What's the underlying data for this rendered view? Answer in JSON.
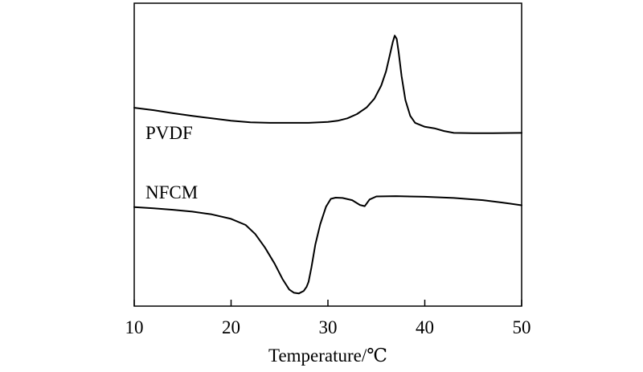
{
  "chart_data": {
    "type": "line",
    "xlabel": "Temperature/℃",
    "ylabel": "",
    "xlim": [
      10,
      50
    ],
    "xticks": [
      10,
      20,
      30,
      40,
      50
    ],
    "yticks_visible": false,
    "grid": false,
    "series": [
      {
        "name": "PVDF",
        "color": "#000000",
        "points": [
          [
            10.0,
            0.655
          ],
          [
            12.0,
            0.647
          ],
          [
            14.0,
            0.637
          ],
          [
            16.0,
            0.628
          ],
          [
            18.0,
            0.62
          ],
          [
            20.0,
            0.612
          ],
          [
            22.0,
            0.607
          ],
          [
            24.0,
            0.605
          ],
          [
            26.0,
            0.605
          ],
          [
            28.0,
            0.605
          ],
          [
            30.0,
            0.608
          ],
          [
            31.0,
            0.612
          ],
          [
            32.0,
            0.62
          ],
          [
            33.0,
            0.634
          ],
          [
            34.0,
            0.656
          ],
          [
            34.8,
            0.685
          ],
          [
            35.5,
            0.728
          ],
          [
            36.0,
            0.775
          ],
          [
            36.4,
            0.83
          ],
          [
            36.7,
            0.872
          ],
          [
            36.9,
            0.893
          ],
          [
            37.1,
            0.882
          ],
          [
            37.3,
            0.838
          ],
          [
            37.6,
            0.76
          ],
          [
            38.0,
            0.68
          ],
          [
            38.5,
            0.628
          ],
          [
            39.0,
            0.605
          ],
          [
            40.0,
            0.592
          ],
          [
            41.0,
            0.587
          ],
          [
            42.0,
            0.578
          ],
          [
            43.0,
            0.572
          ],
          [
            45.0,
            0.571
          ],
          [
            47.0,
            0.571
          ],
          [
            50.0,
            0.572
          ]
        ]
      },
      {
        "name": "NFCM",
        "color": "#000000",
        "points": [
          [
            10.0,
            0.327
          ],
          [
            12.0,
            0.323
          ],
          [
            14.0,
            0.318
          ],
          [
            16.0,
            0.312
          ],
          [
            18.0,
            0.303
          ],
          [
            20.0,
            0.288
          ],
          [
            21.5,
            0.268
          ],
          [
            22.5,
            0.238
          ],
          [
            23.5,
            0.193
          ],
          [
            24.5,
            0.14
          ],
          [
            25.3,
            0.09
          ],
          [
            26.0,
            0.055
          ],
          [
            26.5,
            0.044
          ],
          [
            27.0,
            0.042
          ],
          [
            27.5,
            0.05
          ],
          [
            27.8,
            0.064
          ],
          [
            28.0,
            0.08
          ],
          [
            28.3,
            0.128
          ],
          [
            28.7,
            0.203
          ],
          [
            29.2,
            0.27
          ],
          [
            29.8,
            0.328
          ],
          [
            30.3,
            0.354
          ],
          [
            30.8,
            0.358
          ],
          [
            31.5,
            0.357
          ],
          [
            32.5,
            0.35
          ],
          [
            33.3,
            0.334
          ],
          [
            33.8,
            0.33
          ],
          [
            34.3,
            0.352
          ],
          [
            35.0,
            0.362
          ],
          [
            37.0,
            0.363
          ],
          [
            40.0,
            0.361
          ],
          [
            43.0,
            0.357
          ],
          [
            46.0,
            0.35
          ],
          [
            48.0,
            0.342
          ],
          [
            50.0,
            0.333
          ]
        ]
      }
    ]
  }
}
